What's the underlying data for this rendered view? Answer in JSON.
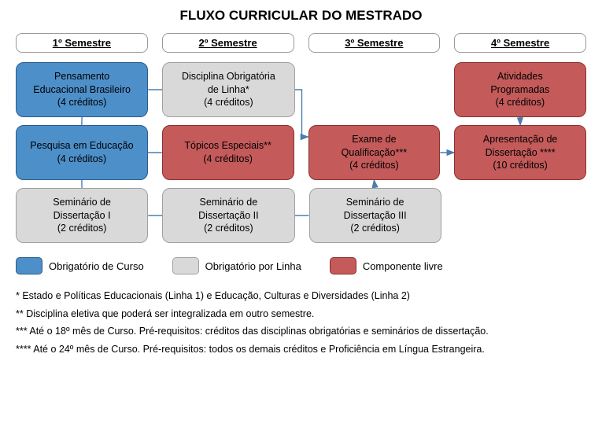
{
  "title": "FLUXO CURRICULAR DO MESTRADO",
  "colors": {
    "blue_fill": "#4d8fc9",
    "blue_border": "#2a5d8a",
    "gray_fill": "#d9d9d9",
    "gray_border": "#a0a0a0",
    "red_fill": "#c45a5a",
    "red_border": "#8a3030",
    "arrow": "#4a7db0",
    "background": "#ffffff"
  },
  "layout": {
    "columns": 4,
    "rows": 3,
    "col_gap": 18,
    "row_gap": 10,
    "node_radius": 10,
    "header_radius": 8,
    "font_family": "Arial",
    "title_fontsize": 17,
    "header_fontsize": 13,
    "node_fontsize": 12.5,
    "legend_fontsize": 13,
    "notes_fontsize": 12.5
  },
  "headers": [
    "1º Semestre",
    "2º Semestre",
    "3º Semestre",
    "4º Semestre"
  ],
  "nodes": {
    "r0c0": {
      "lines": [
        "Pensamento",
        "Educacional Brasileiro",
        "(4 créditos)"
      ],
      "style": "blue"
    },
    "r0c1": {
      "lines": [
        "Disciplina Obrigatória",
        "de Linha*",
        "(4 créditos)"
      ],
      "style": "gray"
    },
    "r0c2": {
      "empty": true
    },
    "r0c3": {
      "lines": [
        "Atividades",
        "Programadas",
        "(4 créditos)"
      ],
      "style": "red"
    },
    "r1c0": {
      "lines": [
        "Pesquisa em Educação",
        "(4 créditos)"
      ],
      "style": "blue"
    },
    "r1c1": {
      "lines": [
        "Tópicos Especiais**",
        "(4 créditos)"
      ],
      "style": "red"
    },
    "r1c2": {
      "lines": [
        "Exame de",
        "Qualificação***",
        "(4 créditos)"
      ],
      "style": "red"
    },
    "r1c3": {
      "lines": [
        "Apresentação de",
        "Dissertação ****",
        "(10 créditos)"
      ],
      "style": "red"
    },
    "r2c0": {
      "lines": [
        "Seminário de",
        "Dissertação I",
        "(2 créditos)"
      ],
      "style": "gray"
    },
    "r2c1": {
      "lines": [
        "Seminário de",
        "Dissertação II",
        "(2 créditos)"
      ],
      "style": "gray"
    },
    "r2c2": {
      "lines": [
        "Seminário de",
        "Dissertação III",
        "(2 créditos)"
      ],
      "style": "gray"
    },
    "r2c3": {
      "empty": true
    }
  },
  "edges": [
    {
      "from": "r0c0",
      "to": "r0c1",
      "dir": "h"
    },
    {
      "from": "r0c0",
      "to": "r1c0",
      "dir": "v"
    },
    {
      "from": "r1c0",
      "to": "r2c0",
      "dir": "v"
    },
    {
      "from": "r1c0",
      "to": "r1c1",
      "dir": "h"
    },
    {
      "from": "r2c0",
      "to": "r2c1",
      "dir": "h"
    },
    {
      "from": "r2c1",
      "to": "r2c2",
      "dir": "h"
    },
    {
      "from": "r2c2",
      "to": "r1c2",
      "dir": "v-arrow"
    },
    {
      "from": "r1c2",
      "to": "r1c3",
      "dir": "h-arrow"
    },
    {
      "from": "r0c3",
      "to": "r1c3",
      "dir": "v-arrow"
    },
    {
      "from": "r0c1",
      "to": "r1c2",
      "dir": "elbow-arrow"
    }
  ],
  "legend": [
    {
      "style": "blue",
      "label": "Obrigatório de Curso"
    },
    {
      "style": "gray",
      "label": "Obrigatório por Linha"
    },
    {
      "style": "red",
      "label": "Componente livre"
    }
  ],
  "notes": [
    "* Estado e Políticas Educacionais (Linha 1) e Educação, Culturas e Diversidades (Linha 2)",
    "** Disciplina eletiva que poderá ser integralizada em outro semestre.",
    "*** Até o 18º mês de Curso. Pré-requisitos: créditos das disciplinas obrigatórias e seminários de dissertação.",
    "**** Até o 24º mês de Curso. Pré-requisitos: todos os demais créditos e Proficiência em Língua Estrangeira."
  ]
}
